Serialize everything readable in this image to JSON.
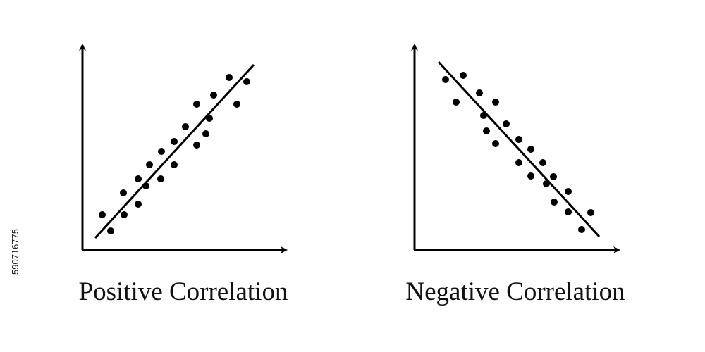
{
  "left": {
    "label": "Positive Correlation"
  },
  "right": {
    "label": "Negative Correlation"
  },
  "side_id": "590716775"
}
